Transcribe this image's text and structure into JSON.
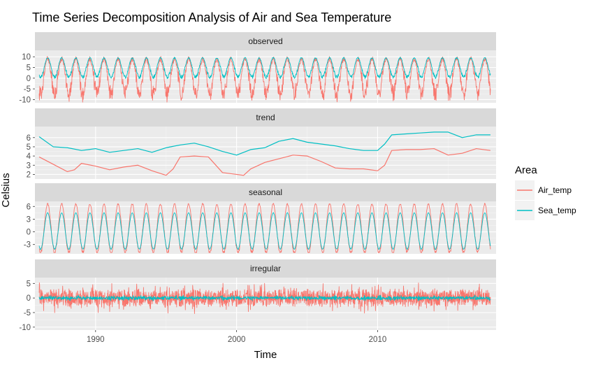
{
  "chart_data": {
    "type": "line",
    "title": "Time Series Decomposition Analysis of Air and Sea Temperature",
    "xlabel": "Time",
    "ylabel": "Celsius",
    "x_range": [
      1985.7,
      2018.4
    ],
    "x_ticks": [
      1990,
      2000,
      2010
    ],
    "x_tick_labels": [
      "1990",
      "2000",
      "2010"
    ],
    "grid": true,
    "legend": {
      "title": "Area",
      "placement": "right",
      "entries": [
        {
          "name": "Air_temp",
          "color": "#F8766D"
        },
        {
          "name": "Sea_temp",
          "color": "#00BFC4"
        }
      ]
    },
    "panels": [
      {
        "label": "observed",
        "ylim": [
          -11.5,
          13
        ],
        "yticks": [
          -10,
          -5,
          0,
          5,
          10
        ],
        "series": [
          {
            "name": "Air_temp",
            "type": "seasonal",
            "start": 1986,
            "end": 2018,
            "mean": 1.5,
            "amplitude": 7.5,
            "noise": 3.2,
            "trough_dip": 3.0
          },
          {
            "name": "Sea_temp",
            "type": "seasonal",
            "start": 1986,
            "end": 2018,
            "mean": 5.0,
            "amplitude": 4.5,
            "noise": 0.8,
            "trough_dip": 0.0
          }
        ]
      },
      {
        "label": "trend",
        "ylim": [
          1.5,
          7.2
        ],
        "yticks": [
          2,
          3,
          4,
          5,
          6
        ],
        "series": [
          {
            "name": "Air_temp",
            "type": "points",
            "x": [
              1986,
              1987,
              1988,
              1988.5,
              1989,
              1990,
              1991,
              1992,
              1993,
              1994,
              1995,
              1995.5,
              1996,
              1997,
              1998,
              1999,
              2000,
              2000.5,
              2001,
              2002,
              2003,
              2004,
              2005,
              2006,
              2007,
              2008,
              2009,
              2010,
              2010.5,
              2011,
              2012,
              2013,
              2014,
              2015,
              2016,
              2017,
              2018
            ],
            "y": [
              3.9,
              3.1,
              2.3,
              2.5,
              3.2,
              2.9,
              2.5,
              2.8,
              3.0,
              2.4,
              1.9,
              2.6,
              3.9,
              4.0,
              3.9,
              2.2,
              2.0,
              1.9,
              2.6,
              3.3,
              3.7,
              4.1,
              4.0,
              3.4,
              2.7,
              2.6,
              2.6,
              2.4,
              3.0,
              4.6,
              4.7,
              4.7,
              4.8,
              4.1,
              4.3,
              4.8,
              4.6
            ]
          },
          {
            "name": "Sea_temp",
            "type": "points",
            "x": [
              1986,
              1987,
              1988,
              1989,
              1990,
              1991,
              1992,
              1993,
              1994,
              1995,
              1996,
              1997,
              1998,
              1999,
              2000,
              2001,
              2002,
              2003,
              2004,
              2005,
              2006,
              2007,
              2008,
              2009,
              2010,
              2010.5,
              2011,
              2012,
              2013,
              2014,
              2015,
              2016,
              2017,
              2018
            ],
            "y": [
              6.1,
              5.0,
              4.9,
              4.6,
              4.8,
              4.4,
              4.6,
              4.8,
              4.4,
              4.9,
              5.2,
              5.4,
              5.0,
              4.5,
              4.1,
              4.7,
              4.9,
              5.6,
              5.9,
              5.5,
              5.3,
              5.1,
              4.8,
              4.6,
              4.6,
              5.3,
              6.3,
              6.4,
              6.5,
              6.6,
              6.6,
              6.0,
              6.3,
              6.3
            ]
          }
        ]
      },
      {
        "label": "seasonal",
        "ylim": [
          -5.2,
          7.2
        ],
        "yticks": [
          -3,
          0,
          3,
          6
        ],
        "series": [
          {
            "name": "Air_temp",
            "type": "seasonal",
            "start": 1986,
            "end": 2018,
            "mean": 0.8,
            "amplitude": 5.8,
            "noise": 0.5,
            "trough_dip": 0.0
          },
          {
            "name": "Sea_temp",
            "type": "seasonal",
            "start": 1986,
            "end": 2018,
            "mean": 0.2,
            "amplitude": 4.3,
            "noise": 0.1,
            "trough_dip": 0.0
          }
        ]
      },
      {
        "label": "irregular",
        "ylim": [
          -11,
          7
        ],
        "yticks": [
          -10,
          -5,
          0,
          5
        ],
        "series": [
          {
            "name": "Air_temp",
            "type": "noise",
            "start": 1986,
            "end": 2018,
            "mean": 0,
            "scale": 3.0
          },
          {
            "name": "Sea_temp",
            "type": "noise",
            "start": 1986,
            "end": 2018,
            "mean": 0,
            "scale": 0.6
          }
        ]
      }
    ]
  }
}
